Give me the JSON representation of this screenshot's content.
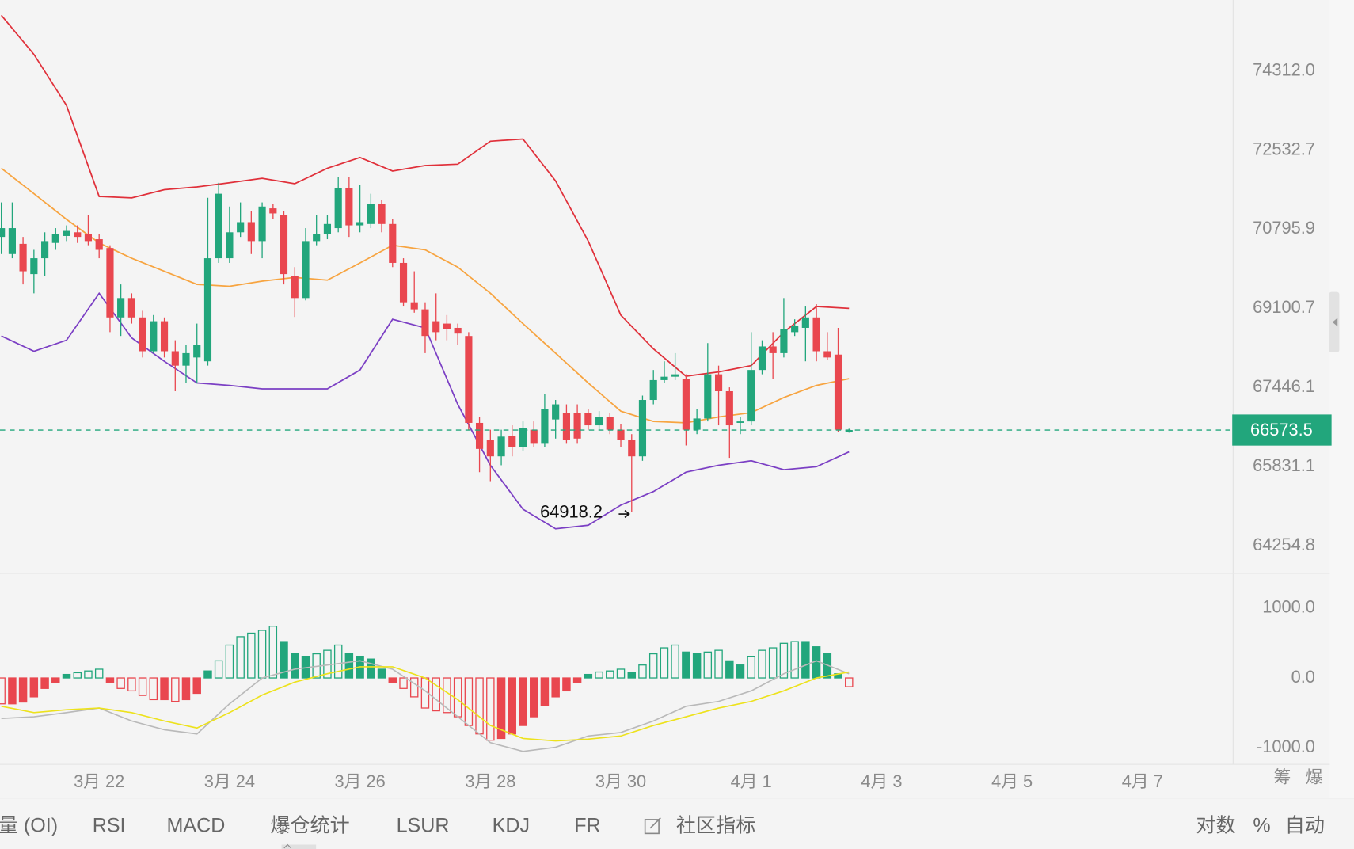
{
  "chart_data": [
    {
      "type": "candlestick",
      "log": true,
      "grid": false,
      "up_color": "#22a67c",
      "down_color": "#e9474f",
      "xlim": [
        20.48,
        39.35
      ],
      "xticks": [
        {
          "value": 22,
          "label": "3月 22"
        },
        {
          "value": 24,
          "label": "3月 24"
        },
        {
          "value": 26,
          "label": "3月 26"
        },
        {
          "value": 28,
          "label": "3月 28"
        },
        {
          "value": 30,
          "label": "3月 30"
        },
        {
          "value": 32,
          "label": "4月 1"
        },
        {
          "value": 34,
          "label": "4月 3"
        },
        {
          "value": 36,
          "label": "4月 5"
        },
        {
          "value": 38,
          "label": "4月 7"
        }
      ],
      "ylim": [
        63730,
        75944
      ],
      "yticks": [
        {
          "value": 74312,
          "label": "74312.0"
        },
        {
          "value": 72532.7,
          "label": "72532.7"
        },
        {
          "value": 70795.9,
          "label": "70795.9"
        },
        {
          "value": 69100.7,
          "label": "69100.7"
        },
        {
          "value": 67446.1,
          "label": "67446.1"
        },
        {
          "value": 65831.1,
          "label": "65831.1"
        },
        {
          "value": 64254.8,
          "label": "64254.8"
        }
      ],
      "x": [
        20.5,
        20.667,
        20.833,
        21,
        21.167,
        21.333,
        21.5,
        21.667,
        21.833,
        22,
        22.167,
        22.333,
        22.5,
        22.667,
        22.833,
        23,
        23.167,
        23.333,
        23.5,
        23.667,
        23.833,
        24,
        24.167,
        24.333,
        24.5,
        24.667,
        24.833,
        25,
        25.167,
        25.333,
        25.5,
        25.667,
        25.833,
        26,
        26.167,
        26.333,
        26.5,
        26.667,
        26.833,
        27,
        27.167,
        27.333,
        27.5,
        27.667,
        27.833,
        28,
        28.167,
        28.333,
        28.5,
        28.667,
        28.833,
        29,
        29.167,
        29.333,
        29.5,
        29.667,
        29.833,
        30,
        30.167,
        30.333,
        30.5,
        30.667,
        30.833,
        31,
        31.167,
        31.333,
        31.5,
        31.667,
        31.833,
        32,
        32.167,
        32.333,
        32.5,
        32.667,
        32.833,
        33,
        33.167,
        33.333,
        33.5
      ],
      "open": [
        70630,
        70260,
        70480,
        69830,
        70170,
        70500,
        70650,
        70730,
        70690,
        70580,
        70390,
        68910,
        69320,
        68910,
        68200,
        68830,
        68200,
        67900,
        68070,
        67990,
        70170,
        70170,
        70730,
        70950,
        70540,
        71250,
        71100,
        69790,
        69320,
        70540,
        70690,
        70820,
        71700,
        70880,
        70910,
        71340,
        70910,
        70070,
        69230,
        69080,
        68830,
        68780,
        68690,
        68520,
        66720,
        66370,
        66040,
        66460,
        66230,
        66580,
        66310,
        66790,
        66930,
        66930,
        66930,
        66670,
        66840,
        66580,
        66370,
        66040,
        67190,
        67600,
        67670,
        67630,
        66580,
        66810,
        67720,
        67370,
        66720,
        66750,
        67810,
        68300,
        68160,
        68600,
        68690,
        68910,
        68200,
        68130,
        66540
      ],
      "high": [
        71380,
        71380,
        70630,
        70350,
        70730,
        70820,
        70880,
        70880,
        71100,
        70690,
        70450,
        69610,
        69420,
        69050,
        68960,
        68910,
        68430,
        68340,
        68780,
        71480,
        71810,
        71290,
        71380,
        71190,
        71380,
        71340,
        71190,
        69980,
        70820,
        71100,
        71100,
        71940,
        71940,
        71760,
        71570,
        71440,
        71010,
        70170,
        69890,
        69230,
        69420,
        68960,
        68780,
        68600,
        66840,
        66580,
        66580,
        66670,
        66750,
        66750,
        67310,
        67190,
        67100,
        67100,
        67010,
        66960,
        66930,
        66700,
        66490,
        67280,
        67810,
        67990,
        68160,
        67720,
        67010,
        68370,
        67900,
        67450,
        66840,
        68600,
        68430,
        68600,
        69320,
        68870,
        69140,
        69190,
        68600,
        68690,
        66600
      ],
      "low": [
        70260,
        70170,
        69610,
        69420,
        69790,
        70350,
        70540,
        70500,
        70450,
        70170,
        68600,
        68520,
        68780,
        68070,
        68160,
        68070,
        67370,
        67540,
        67540,
        67900,
        70070,
        70070,
        70630,
        70260,
        70170,
        71010,
        69610,
        68920,
        69270,
        70450,
        70580,
        70730,
        70630,
        70730,
        70820,
        70730,
        69980,
        69140,
        69010,
        68160,
        68430,
        68430,
        68340,
        66580,
        65720,
        65540,
        65860,
        66040,
        66140,
        66230,
        66230,
        66400,
        66310,
        66310,
        66580,
        66580,
        66490,
        66230,
        64918.2,
        65950,
        67100,
        67540,
        67600,
        66260,
        66490,
        66750,
        66670,
        66010,
        66490,
        66670,
        67720,
        67630,
        68070,
        68520,
        67990,
        67990,
        68020,
        66540,
        66520
      ],
      "close": [
        70820,
        70820,
        69890,
        70170,
        70540,
        70690,
        70760,
        70630,
        70540,
        70350,
        68910,
        69320,
        68910,
        68200,
        68830,
        68200,
        67900,
        68160,
        68340,
        70170,
        71570,
        70730,
        70950,
        70540,
        71290,
        71140,
        69830,
        69320,
        70540,
        70690,
        70910,
        71700,
        70880,
        70950,
        71340,
        70910,
        70070,
        69230,
        69080,
        68520,
        68600,
        68660,
        68570,
        66720,
        66190,
        66040,
        66440,
        66230,
        66620,
        66310,
        67010,
        67100,
        66370,
        66400,
        66670,
        66840,
        66580,
        66370,
        66040,
        67190,
        67600,
        67670,
        67720,
        66580,
        66810,
        67720,
        67370,
        66670,
        66750,
        67810,
        68300,
        68160,
        68660,
        68730,
        68910,
        68200,
        68070,
        66580,
        66573.5
      ],
      "overlay_x": [
        20.5,
        21,
        21.5,
        22,
        22.5,
        23,
        23.5,
        24,
        24.5,
        25,
        25.5,
        26,
        26.5,
        27,
        27.5,
        28,
        28.5,
        29,
        29.5,
        30,
        30.5,
        31,
        31.5,
        32,
        32.5,
        33,
        33.5
      ],
      "overlays": [
        {
          "color": "#e0303a",
          "values": [
            75590,
            74690,
            73530,
            71510,
            71480,
            71660,
            71720,
            71810,
            71910,
            71790,
            72130,
            72370,
            72070,
            72190,
            72220,
            72730,
            72780,
            71850,
            70540,
            68960,
            68250,
            67680,
            67770,
            67900,
            68600,
            69140,
            69100
          ]
        },
        {
          "color": "#f7a440",
          "values": [
            72130,
            71570,
            71010,
            70500,
            70170,
            69890,
            69610,
            69570,
            69680,
            69760,
            69700,
            70070,
            70450,
            70350,
            69980,
            69420,
            68780,
            68160,
            67540,
            66960,
            66750,
            66720,
            66840,
            66930,
            67240,
            67490,
            67630
          ]
        },
        {
          "color": "#7b3fc4",
          "values": [
            68520,
            68200,
            68430,
            69420,
            68480,
            67990,
            67540,
            67490,
            67420,
            67420,
            67420,
            67810,
            68870,
            68690,
            67100,
            65860,
            64980,
            64590,
            64660,
            65060,
            65330,
            65720,
            65860,
            65950,
            65770,
            65830,
            66130
          ]
        }
      ],
      "last_price": 66573.5,
      "last_price_color": "#22a67c"
    },
    {
      "type": "macd",
      "grid": false,
      "ylim": [
        -1235,
        1481
      ],
      "yticks": [
        {
          "value": 1000,
          "label": "1000.0"
        },
        {
          "value": 0,
          "label": "0.0"
        },
        {
          "value": -1000,
          "label": "-1000.0"
        }
      ],
      "histogram": [
        -370,
        -370,
        -345,
        -270,
        -150,
        -60,
        50,
        75,
        100,
        125,
        -60,
        -150,
        -185,
        -250,
        -310,
        -310,
        -335,
        -310,
        -220,
        100,
        245,
        470,
        590,
        640,
        680,
        740,
        520,
        345,
        310,
        345,
        395,
        470,
        345,
        310,
        270,
        125,
        -60,
        -150,
        -270,
        -430,
        -470,
        -495,
        -555,
        -680,
        -800,
        -890,
        -865,
        -800,
        -680,
        -555,
        -395,
        -270,
        -185,
        -60,
        50,
        85,
        100,
        125,
        75,
        185,
        345,
        430,
        470,
        370,
        345,
        370,
        395,
        245,
        185,
        310,
        395,
        430,
        495,
        520,
        520,
        445,
        345,
        60,
        -125
      ],
      "series": [
        {
          "color": "#b9b9b9",
          "values": [
            -580,
            -555,
            -495,
            -430,
            -615,
            -740,
            -800,
            -370,
            0,
            125,
            185,
            245,
            125,
            -185,
            -555,
            -925,
            -1050,
            -990,
            -830,
            -780,
            -615,
            -405,
            -335,
            -185,
            60,
            245,
            60
          ]
        },
        {
          "color": "#ede21c",
          "values": [
            -405,
            -495,
            -455,
            -430,
            -495,
            -615,
            -715,
            -495,
            -245,
            -60,
            60,
            160,
            160,
            0,
            -310,
            -680,
            -865,
            -900,
            -875,
            -830,
            -680,
            -555,
            -430,
            -335,
            -185,
            0,
            85
          ]
        }
      ]
    }
  ],
  "axis_corner": [
    "筹",
    "爆"
  ],
  "toolbar": {
    "tabs": [
      "量 (OI)",
      "RSI",
      "MACD",
      "爆仓统计",
      "LSUR",
      "KDJ",
      "FR",
      "社区指标"
    ],
    "active_tab": 2,
    "right_buttons": [
      {
        "label": "对数",
        "active": true
      },
      {
        "label": "%",
        "active": false
      },
      {
        "label": "自动",
        "active": true
      }
    ]
  }
}
